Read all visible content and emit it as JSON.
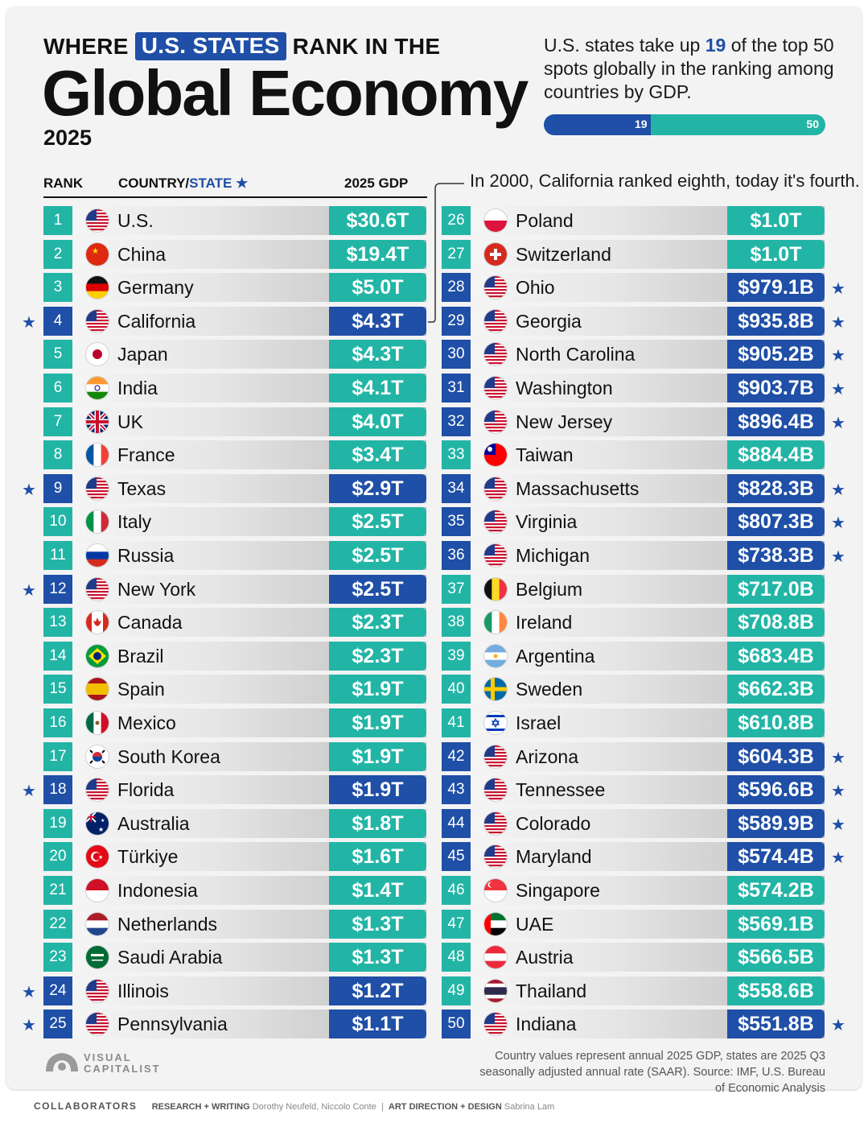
{
  "title": {
    "prefix": "WHERE",
    "highlight": "U.S. STATES",
    "suffix": "RANK IN THE",
    "main": "Global Economy",
    "year": "2025"
  },
  "intro": {
    "before": "U.S. states take up",
    "number": "19",
    "after": "of the top 50 spots globally in the ranking among countries by GDP."
  },
  "progress": {
    "value": 19,
    "max": 50,
    "value_label": "19",
    "max_label": "50"
  },
  "headers": {
    "rank": "RANK",
    "country": "COUNTRY/",
    "state": "STATE",
    "star": "★",
    "gdp": "2025 GDP"
  },
  "annotation": "In 2000, California ranked eighth, today it's fourth.",
  "colors": {
    "country": "#22b5a6",
    "state": "#1f4fa6"
  },
  "chart_data": {
    "type": "table",
    "columns": [
      "RANK",
      "COUNTRY/STATE",
      "2025 GDP"
    ],
    "rows": [
      {
        "rank": "1",
        "name": "U.S.",
        "gdp": "$30.6T",
        "state": false,
        "flag": "us"
      },
      {
        "rank": "2",
        "name": "China",
        "gdp": "$19.4T",
        "state": false,
        "flag": "cn"
      },
      {
        "rank": "3",
        "name": "Germany",
        "gdp": "$5.0T",
        "state": false,
        "flag": "de"
      },
      {
        "rank": "4",
        "name": "California",
        "gdp": "$4.3T",
        "state": true,
        "flag": "us"
      },
      {
        "rank": "5",
        "name": "Japan",
        "gdp": "$4.3T",
        "state": false,
        "flag": "jp"
      },
      {
        "rank": "6",
        "name": "India",
        "gdp": "$4.1T",
        "state": false,
        "flag": "in"
      },
      {
        "rank": "7",
        "name": "UK",
        "gdp": "$4.0T",
        "state": false,
        "flag": "uk"
      },
      {
        "rank": "8",
        "name": "France",
        "gdp": "$3.4T",
        "state": false,
        "flag": "fr"
      },
      {
        "rank": "9",
        "name": "Texas",
        "gdp": "$2.9T",
        "state": true,
        "flag": "us"
      },
      {
        "rank": "10",
        "name": "Italy",
        "gdp": "$2.5T",
        "state": false,
        "flag": "it"
      },
      {
        "rank": "11",
        "name": "Russia",
        "gdp": "$2.5T",
        "state": false,
        "flag": "ru"
      },
      {
        "rank": "12",
        "name": "New York",
        "gdp": "$2.5T",
        "state": true,
        "flag": "us"
      },
      {
        "rank": "13",
        "name": "Canada",
        "gdp": "$2.3T",
        "state": false,
        "flag": "ca"
      },
      {
        "rank": "14",
        "name": "Brazil",
        "gdp": "$2.3T",
        "state": false,
        "flag": "br"
      },
      {
        "rank": "15",
        "name": "Spain",
        "gdp": "$1.9T",
        "state": false,
        "flag": "es"
      },
      {
        "rank": "16",
        "name": "Mexico",
        "gdp": "$1.9T",
        "state": false,
        "flag": "mx"
      },
      {
        "rank": "17",
        "name": "South Korea",
        "gdp": "$1.9T",
        "state": false,
        "flag": "kr"
      },
      {
        "rank": "18",
        "name": "Florida",
        "gdp": "$1.9T",
        "state": true,
        "flag": "us"
      },
      {
        "rank": "19",
        "name": "Australia",
        "gdp": "$1.8T",
        "state": false,
        "flag": "au"
      },
      {
        "rank": "20",
        "name": "Türkiye",
        "gdp": "$1.6T",
        "state": false,
        "flag": "tr"
      },
      {
        "rank": "21",
        "name": "Indonesia",
        "gdp": "$1.4T",
        "state": false,
        "flag": "id"
      },
      {
        "rank": "22",
        "name": "Netherlands",
        "gdp": "$1.3T",
        "state": false,
        "flag": "nl"
      },
      {
        "rank": "23",
        "name": "Saudi Arabia",
        "gdp": "$1.3T",
        "state": false,
        "flag": "sa"
      },
      {
        "rank": "24",
        "name": "Illinois",
        "gdp": "$1.2T",
        "state": true,
        "flag": "us"
      },
      {
        "rank": "25",
        "name": "Pennsylvania",
        "gdp": "$1.1T",
        "state": true,
        "flag": "us"
      },
      {
        "rank": "26",
        "name": "Poland",
        "gdp": "$1.0T",
        "state": false,
        "flag": "pl"
      },
      {
        "rank": "27",
        "name": "Switzerland",
        "gdp": "$1.0T",
        "state": false,
        "flag": "ch"
      },
      {
        "rank": "28",
        "name": "Ohio",
        "gdp": "$979.1B",
        "state": true,
        "flag": "us"
      },
      {
        "rank": "29",
        "name": "Georgia",
        "gdp": "$935.8B",
        "state": true,
        "flag": "us"
      },
      {
        "rank": "30",
        "name": "North Carolina",
        "gdp": "$905.2B",
        "state": true,
        "flag": "us"
      },
      {
        "rank": "31",
        "name": "Washington",
        "gdp": "$903.7B",
        "state": true,
        "flag": "us"
      },
      {
        "rank": "32",
        "name": "New Jersey",
        "gdp": "$896.4B",
        "state": true,
        "flag": "us"
      },
      {
        "rank": "33",
        "name": "Taiwan",
        "gdp": "$884.4B",
        "state": false,
        "flag": "tw"
      },
      {
        "rank": "34",
        "name": "Massachusetts",
        "gdp": "$828.3B",
        "state": true,
        "flag": "us"
      },
      {
        "rank": "35",
        "name": "Virginia",
        "gdp": "$807.3B",
        "state": true,
        "flag": "us"
      },
      {
        "rank": "36",
        "name": "Michigan",
        "gdp": "$738.3B",
        "state": true,
        "flag": "us"
      },
      {
        "rank": "37",
        "name": "Belgium",
        "gdp": "$717.0B",
        "state": false,
        "flag": "be"
      },
      {
        "rank": "38",
        "name": "Ireland",
        "gdp": "$708.8B",
        "state": false,
        "flag": "ie"
      },
      {
        "rank": "39",
        "name": "Argentina",
        "gdp": "$683.4B",
        "state": false,
        "flag": "ar"
      },
      {
        "rank": "40",
        "name": "Sweden",
        "gdp": "$662.3B",
        "state": false,
        "flag": "se"
      },
      {
        "rank": "41",
        "name": "Israel",
        "gdp": "$610.8B",
        "state": false,
        "flag": "il"
      },
      {
        "rank": "42",
        "name": "Arizona",
        "gdp": "$604.3B",
        "state": true,
        "flag": "us"
      },
      {
        "rank": "43",
        "name": "Tennessee",
        "gdp": "$596.6B",
        "state": true,
        "flag": "us"
      },
      {
        "rank": "44",
        "name": "Colorado",
        "gdp": "$589.9B",
        "state": true,
        "flag": "us"
      },
      {
        "rank": "45",
        "name": "Maryland",
        "gdp": "$574.4B",
        "state": true,
        "flag": "us"
      },
      {
        "rank": "46",
        "name": "Singapore",
        "gdp": "$574.2B",
        "state": false,
        "flag": "sg"
      },
      {
        "rank": "47",
        "name": "UAE",
        "gdp": "$569.1B",
        "state": false,
        "flag": "ae"
      },
      {
        "rank": "48",
        "name": "Austria",
        "gdp": "$566.5B",
        "state": false,
        "flag": "at"
      },
      {
        "rank": "49",
        "name": "Thailand",
        "gdp": "$558.6B",
        "state": false,
        "flag": "th"
      },
      {
        "rank": "50",
        "name": "Indiana",
        "gdp": "$551.8B",
        "state": true,
        "flag": "us"
      }
    ]
  },
  "footer": {
    "note": "Country values represent annual 2025 GDP, states are 2025 Q3 seasonally adjusted annual rate (SAAR). Source: IMF, U.S. Bureau of Economic Analysis",
    "logo_line1": "VISUAL",
    "logo_line2": "CAPITALIST",
    "collaborators_label": "COLLABORATORS",
    "research_label": "RESEARCH + WRITING",
    "research_names": "Dorothy Neufeld, Niccolo Conte",
    "separator": "|",
    "art_label": "ART DIRECTION + DESIGN",
    "art_names": "Sabrina Lam"
  }
}
